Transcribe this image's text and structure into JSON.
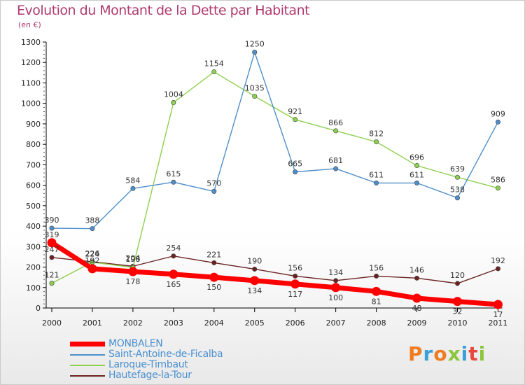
{
  "header": {
    "title": "Evolution du Montant de la Dette par Habitant",
    "subtitle": "(en €)"
  },
  "brand": {
    "text": "Proxiti",
    "colors": [
      "#f07c21",
      "#3aa0d8",
      "#f07c21",
      "#8cc63f",
      "#3aa0d8",
      "#e8473f",
      "#8cc63f"
    ]
  },
  "chart_data": {
    "type": "line",
    "x": [
      "2000",
      "2001",
      "2002",
      "2003",
      "2004",
      "2005",
      "2006",
      "2007",
      "2008",
      "2009",
      "2010",
      "2011"
    ],
    "ylim": [
      0,
      1300
    ],
    "yticks": [
      0,
      100,
      200,
      300,
      400,
      500,
      600,
      700,
      800,
      900,
      1000,
      1100,
      1200,
      1300
    ],
    "grid": false,
    "legend_position": "bottom-left",
    "series": [
      {
        "name": "MONBALEN",
        "color": "#ff0000",
        "values": [
          319,
          192,
          178,
          165,
          150,
          134,
          117,
          100,
          81,
          48,
          32,
          17
        ]
      },
      {
        "name": "Saint-Antoine-de-Ficalba",
        "color": "#4f8fc9",
        "values": [
          390,
          388,
          584,
          615,
          570,
          1250,
          665,
          681,
          611,
          611,
          538,
          909
        ]
      },
      {
        "name": "Laroque-Timbaut",
        "color": "#8ed04f",
        "values": [
          121,
          224,
          198,
          1004,
          1154,
          1035,
          921,
          866,
          812,
          696,
          639,
          586
        ]
      },
      {
        "name": "Hautefage-la-Tour",
        "color": "#6b2222",
        "values": [
          247,
          226,
          204,
          254,
          221,
          190,
          156,
          134,
          156,
          146,
          120,
          192
        ]
      }
    ]
  }
}
